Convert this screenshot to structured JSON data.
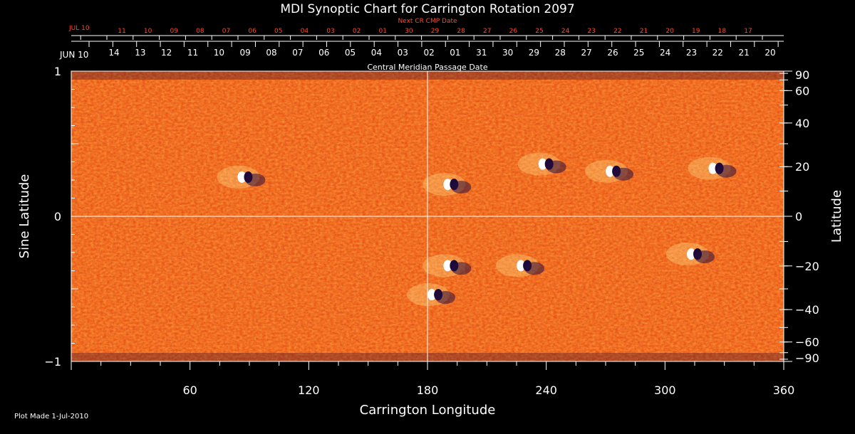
{
  "chart_data": {
    "type": "heatmap",
    "title": "MDI Synoptic Chart for Carrington Rotation 2097",
    "xlabel": "Carrington Longitude",
    "ylabel": "Sine Latitude",
    "ylabel_right": "Latitude",
    "xlim": [
      0,
      360
    ],
    "ylim": [
      -1,
      1
    ],
    "x_ticks": [
      60,
      120,
      180,
      240,
      300,
      360
    ],
    "y_ticks_left": [
      {
        "label": "1",
        "value": 1
      },
      {
        "label": "0",
        "value": 0
      },
      {
        "label": "−1",
        "value": -1
      }
    ],
    "y_ticks_right": [
      {
        "label": "90",
        "deg": 90
      },
      {
        "label": "60",
        "deg": 60
      },
      {
        "label": "40",
        "deg": 40
      },
      {
        "label": "20",
        "deg": 20
      },
      {
        "label": "0",
        "deg": 0
      },
      {
        "label": "−20",
        "deg": -20
      },
      {
        "label": "−40",
        "deg": -40
      },
      {
        "label": "−60",
        "deg": -60
      },
      {
        "label": "−90",
        "deg": -90
      }
    ],
    "cmp_axis_label": "Central Meridian Passage Date",
    "next_cmp_axis_label": "Next CR CMP Date",
    "cmp_start_label": "JUN 10",
    "cmp_dates": [
      "14",
      "13",
      "12",
      "11",
      "10",
      "09",
      "08",
      "07",
      "06",
      "05",
      "04",
      "03",
      "02",
      "01",
      "31",
      "30",
      "29",
      "28",
      "27",
      "26",
      "25",
      "24",
      "23",
      "22",
      "21",
      "20"
    ],
    "next_cmp_start_label": "JUL 10",
    "next_cmp_dates": [
      "11",
      "10",
      "09",
      "08",
      "07",
      "06",
      "05",
      "04",
      "03",
      "02",
      "01",
      "30",
      "29",
      "28",
      "27",
      "26",
      "25",
      "24",
      "23",
      "22",
      "21",
      "20",
      "19",
      "18",
      "17"
    ],
    "grid_lines": {
      "longitude": 180,
      "sine_latitude": 0
    },
    "active_regions": [
      {
        "lon": 88,
        "sinlat": 0.27,
        "hemisphere": "north"
      },
      {
        "lon": 192,
        "sinlat": 0.22,
        "hemisphere": "north"
      },
      {
        "lon": 240,
        "sinlat": 0.36,
        "hemisphere": "north"
      },
      {
        "lon": 274,
        "sinlat": 0.31,
        "hemisphere": "north"
      },
      {
        "lon": 326,
        "sinlat": 0.33,
        "hemisphere": "north"
      },
      {
        "lon": 192,
        "sinlat": -0.34,
        "hemisphere": "south"
      },
      {
        "lon": 229,
        "sinlat": -0.34,
        "hemisphere": "south"
      },
      {
        "lon": 184,
        "sinlat": -0.54,
        "hemisphere": "south"
      },
      {
        "lon": 315,
        "sinlat": -0.26,
        "hemisphere": "south"
      }
    ]
  },
  "footer": {
    "plot_made": "Plot Made  1-Jul-2010"
  }
}
